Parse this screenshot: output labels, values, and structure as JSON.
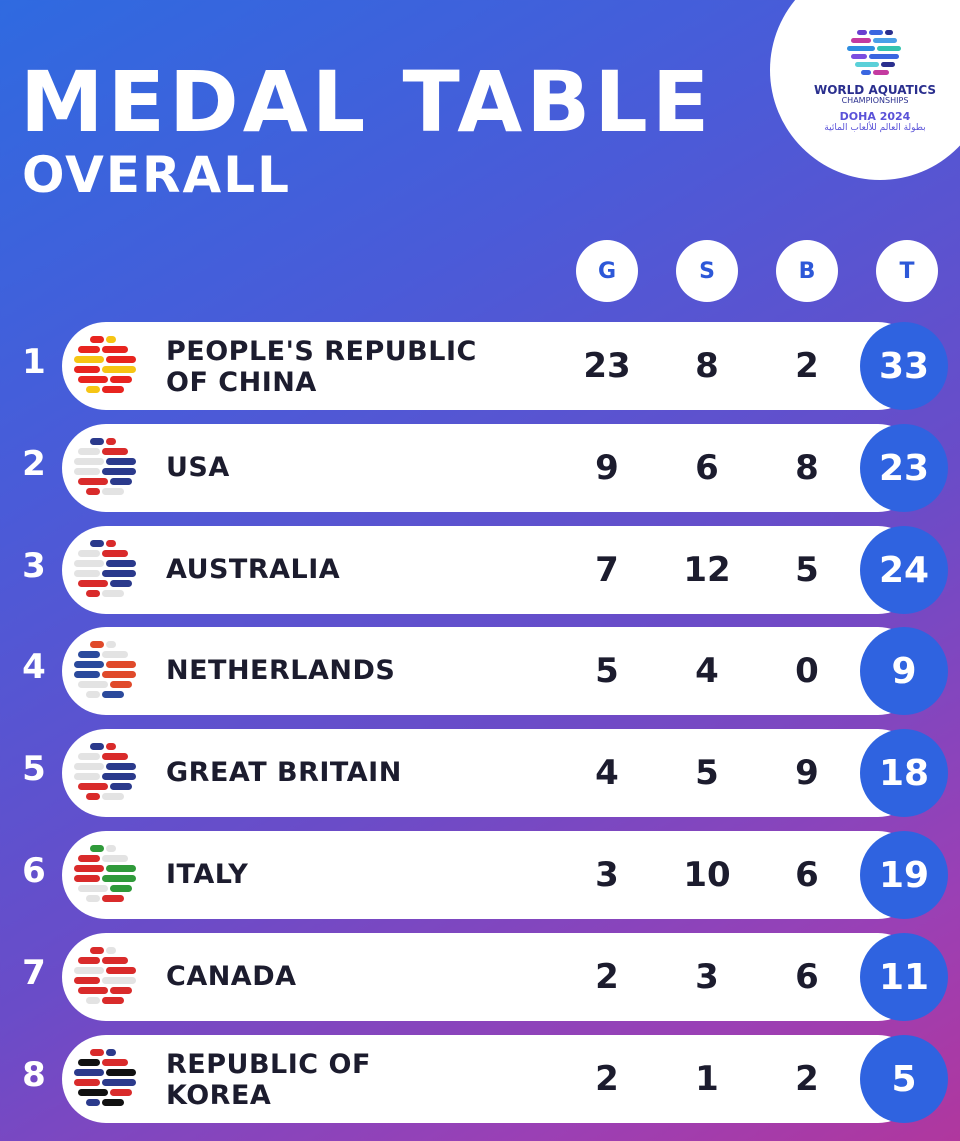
{
  "header": {
    "title": "MEDAL TABLE",
    "subtitle": "OVERALL"
  },
  "logo": {
    "line1": "WORLD AQUATICS",
    "line2": "CHAMPIONSHIPS",
    "line3": "DOHA 2024",
    "line4": "بطولة العالم للألعاب المائية",
    "icon": "world-aquatics-logo-icon"
  },
  "columns": {
    "gold": "G",
    "silver": "S",
    "bronze": "B",
    "total": "T"
  },
  "rows": [
    {
      "rank": "1",
      "country": "PEOPLE'S REPUBLIC OF CHINA",
      "line1": "PEOPLE'S REPUBLIC",
      "line2": "OF CHINA",
      "gold": "23",
      "silver": "8",
      "bronze": "2",
      "total": "33",
      "flag_colors": [
        "#e8241f",
        "#f6c514"
      ]
    },
    {
      "rank": "2",
      "country": "USA",
      "line1": "USA",
      "line2": "",
      "gold": "9",
      "silver": "6",
      "bronze": "8",
      "total": "23",
      "flag_colors": [
        "#2b3a8c",
        "#d92b2b",
        "#e3e3e3"
      ]
    },
    {
      "rank": "3",
      "country": "AUSTRALIA",
      "line1": "AUSTRALIA",
      "line2": "",
      "gold": "7",
      "silver": "12",
      "bronze": "5",
      "total": "24",
      "flag_colors": [
        "#2b3a8c",
        "#d92b2b",
        "#e3e3e3"
      ]
    },
    {
      "rank": "4",
      "country": "NETHERLANDS",
      "line1": "NETHERLANDS",
      "line2": "",
      "gold": "5",
      "silver": "4",
      "bronze": "0",
      "total": "9",
      "flag_colors": [
        "#e04a2b",
        "#e3e3e3",
        "#2b4a9c"
      ]
    },
    {
      "rank": "5",
      "country": "GREAT BRITAIN",
      "line1": "GREAT BRITAIN",
      "line2": "",
      "gold": "4",
      "silver": "5",
      "bronze": "9",
      "total": "18",
      "flag_colors": [
        "#2b3a8c",
        "#d92b2b",
        "#e3e3e3"
      ]
    },
    {
      "rank": "6",
      "country": "ITALY",
      "line1": "ITALY",
      "line2": "",
      "gold": "3",
      "silver": "10",
      "bronze": "6",
      "total": "19",
      "flag_colors": [
        "#2f9a3a",
        "#e3e3e3",
        "#d92b2b"
      ]
    },
    {
      "rank": "7",
      "country": "CANADA",
      "line1": "CANADA",
      "line2": "",
      "gold": "2",
      "silver": "3",
      "bronze": "6",
      "total": "11",
      "flag_colors": [
        "#d92b2b",
        "#e3e3e3"
      ]
    },
    {
      "rank": "8",
      "country": "REPUBLIC OF KOREA",
      "line1": "REPUBLIC OF",
      "line2": "KOREA",
      "gold": "2",
      "silver": "1",
      "bronze": "2",
      "total": "5",
      "flag_colors": [
        "#d92b2b",
        "#2b3a8c",
        "#111111",
        "#e3e3e3"
      ]
    }
  ],
  "colors": {
    "accent": "#2f63e0",
    "row_bg": "#ffffff",
    "text_dark": "#1c1c2e"
  }
}
